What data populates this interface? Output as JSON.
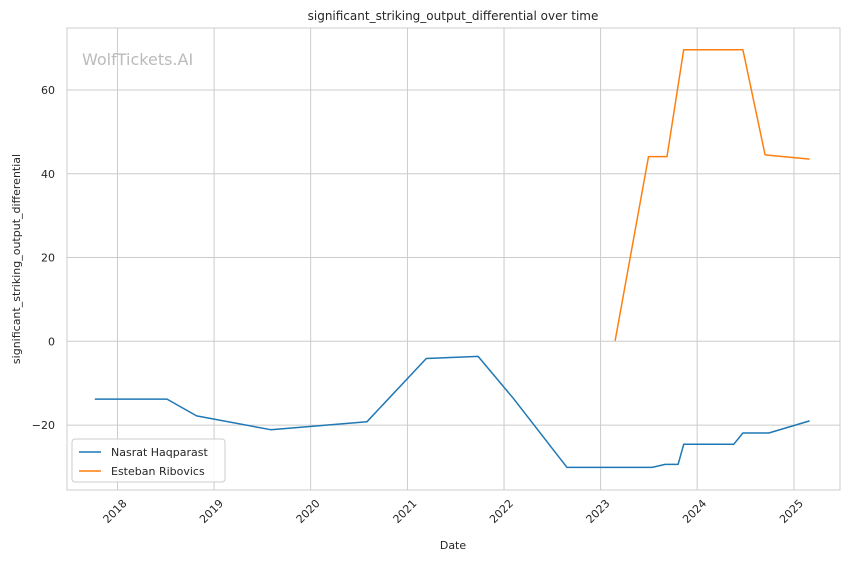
{
  "watermark": "WolfTickets.AI",
  "chart_data": {
    "type": "line",
    "title": "significant_striking_output_differential over time",
    "xlabel": "Date",
    "ylabel": "significant_striking_output_differential",
    "x_ticks": [
      "2018",
      "2019",
      "2020",
      "2021",
      "2022",
      "2023",
      "2024",
      "2025"
    ],
    "y_ticks": [
      -20,
      0,
      20,
      40,
      60
    ],
    "xlim": [
      "2017-06-24",
      "2025-06-24"
    ],
    "ylim": [
      -35.5,
      74.8
    ],
    "grid": true,
    "legend_position": "lower-left",
    "series": [
      {
        "name": "Nasrat Haqparast",
        "color": "#1f77b4",
        "points": [
          [
            "2017-10-07",
            -13.8
          ],
          [
            "2018-07-07",
            -13.8
          ],
          [
            "2018-10-27",
            -17.8
          ],
          [
            "2019-08-03",
            -21.1
          ],
          [
            "2020-08-01",
            -19.2
          ],
          [
            "2021-03-13",
            -4.1
          ],
          [
            "2021-09-25",
            -3.6
          ],
          [
            "2022-02-05",
            -13.6
          ],
          [
            "2022-08-27",
            -30.1
          ],
          [
            "2023-07-15",
            -30.1
          ],
          [
            "2023-09-02",
            -29.4
          ],
          [
            "2023-10-21",
            -29.4
          ],
          [
            "2023-11-11",
            -24.6
          ],
          [
            "2024-05-18",
            -24.6
          ],
          [
            "2024-06-22",
            -21.9
          ],
          [
            "2024-09-28",
            -21.9
          ],
          [
            "2025-03-01",
            -19.0
          ]
        ]
      },
      {
        "name": "Esteban Ribovics",
        "color": "#ff7f0e",
        "points": [
          [
            "2023-02-25",
            0.1
          ],
          [
            "2023-07-01",
            44.1
          ],
          [
            "2023-09-09",
            44.1
          ],
          [
            "2023-11-11",
            69.6
          ],
          [
            "2024-06-22",
            69.6
          ],
          [
            "2024-09-14",
            44.5
          ],
          [
            "2025-03-01",
            43.5
          ]
        ]
      }
    ]
  }
}
